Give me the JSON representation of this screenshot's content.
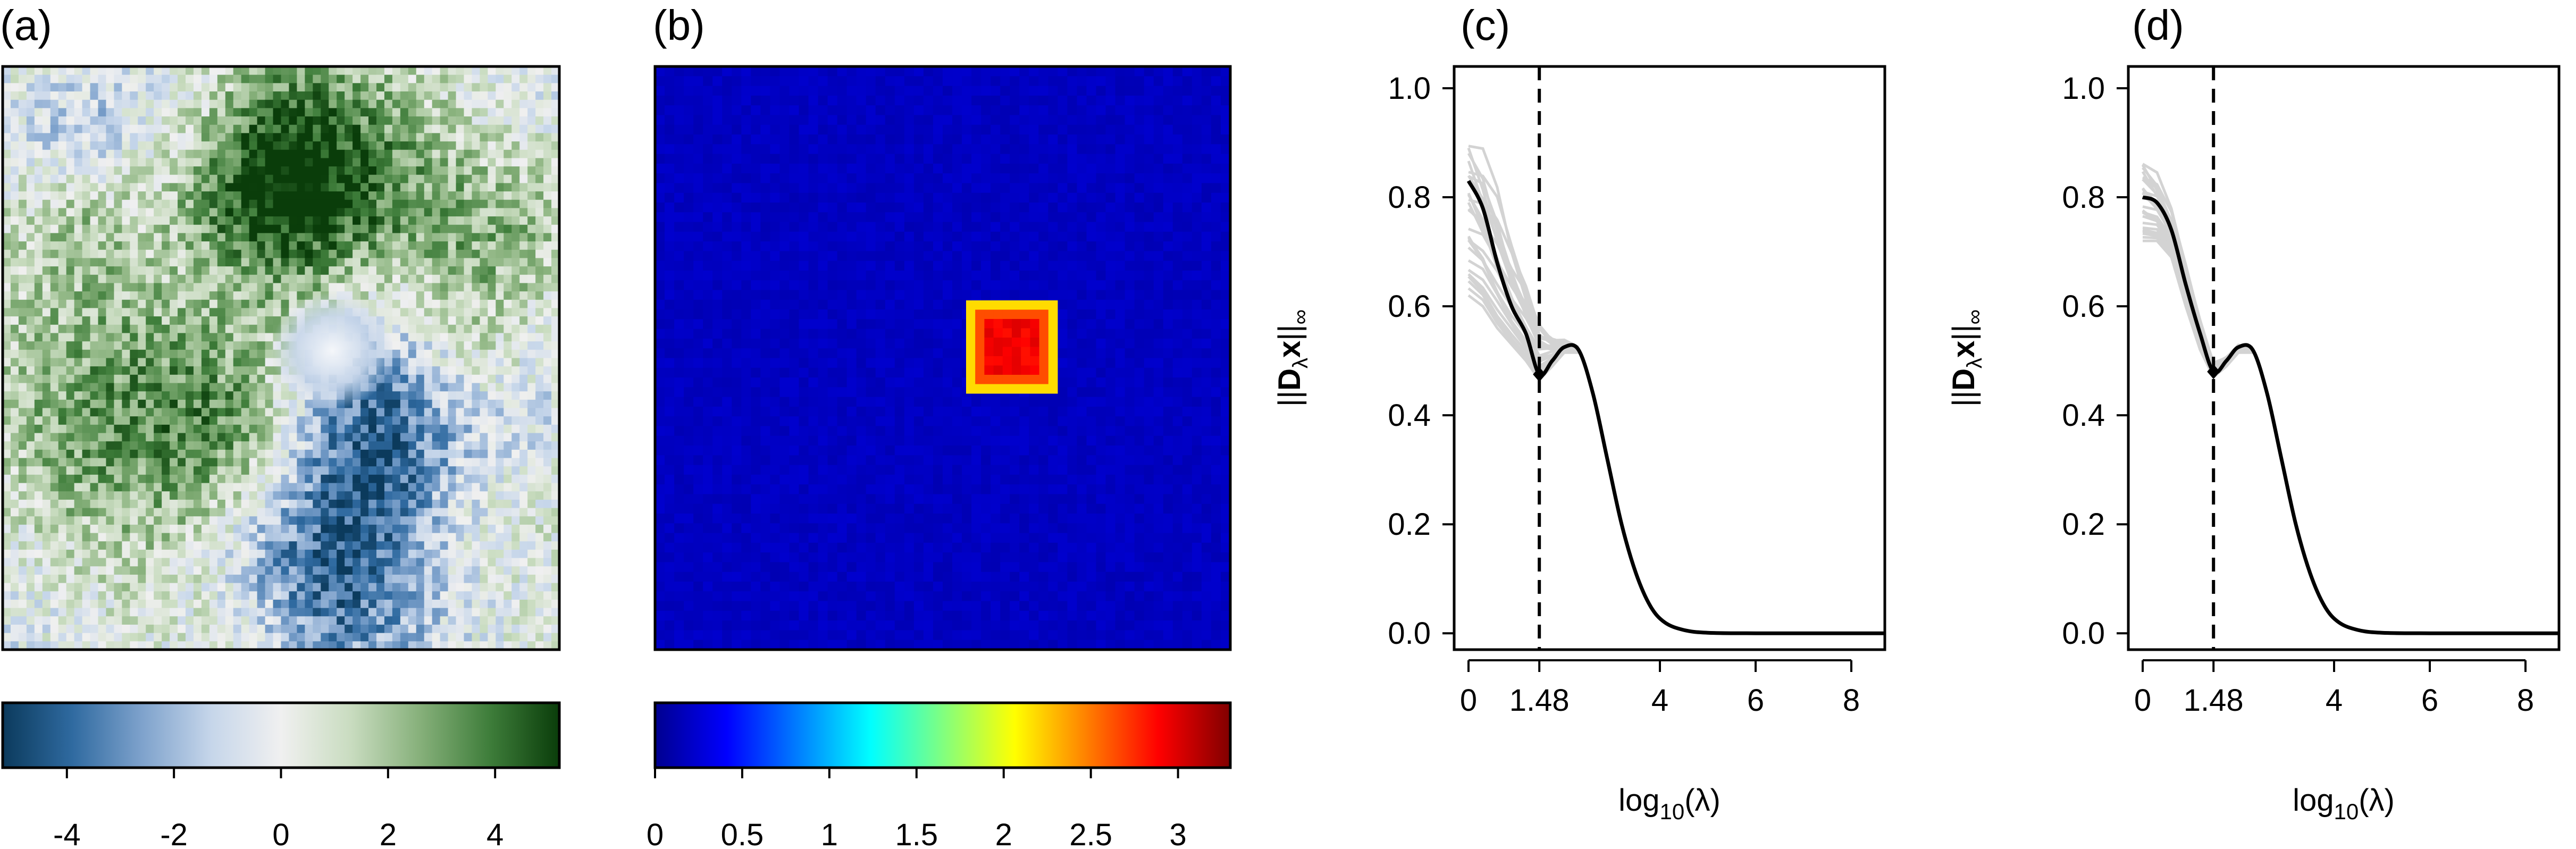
{
  "panels": [
    {
      "label": "(a)"
    },
    {
      "label": "(b)"
    },
    {
      "label": "(c)"
    },
    {
      "label": "(d)"
    }
  ],
  "colors": {
    "greenblue_scale": [
      "#0b3a5c",
      "#2f6aa0",
      "#7ea2cc",
      "#c6d6ea",
      "#f0f0f0",
      "#c9dcc0",
      "#86b07a",
      "#3e7d3a",
      "#0a3d0a"
    ],
    "jet_scale": [
      "#00008f",
      "#0000ff",
      "#0080ff",
      "#00ffff",
      "#80ff80",
      "#ffff00",
      "#ff8000",
      "#ff0000",
      "#800000"
    ],
    "curve": "#000000",
    "bootstrap_curves": "#d3d3d3",
    "vline": "#000000"
  },
  "colorbars": [
    {
      "id": "a",
      "ticks": [
        "-4",
        "-2",
        "0",
        "2",
        "4"
      ],
      "range": [
        -5.2,
        5.2
      ]
    },
    {
      "id": "b",
      "ticks": [
        "0",
        "0.5",
        "1",
        "1.5",
        "2",
        "2.5",
        "3"
      ],
      "range": [
        0,
        3.3
      ]
    }
  ],
  "chart_data": [
    {
      "panel": "c",
      "type": "line",
      "xlabel": "log10(λ)",
      "ylabel": "||Dλx||∞",
      "x_ticks": [
        "0",
        "1.48",
        "4",
        "6",
        "8"
      ],
      "x_tick_values": [
        0,
        1.48,
        4,
        6,
        8
      ],
      "y_ticks": [
        "0.0",
        "0.2",
        "0.4",
        "0.6",
        "0.8",
        "1.0"
      ],
      "xlim": [
        -0.3,
        8.7
      ],
      "ylim": [
        -0.03,
        1.04
      ],
      "vline_x": 1.48,
      "marker": {
        "x": 1.48,
        "y": 0.475
      },
      "series": [
        {
          "x": [
            0,
            0.3,
            0.6,
            0.9,
            1.2,
            1.48,
            1.75,
            2.0,
            2.3,
            2.6,
            2.9,
            3.2,
            3.5,
            3.8,
            4.1,
            4.5,
            5.0,
            6.0,
            8.7
          ],
          "y": [
            0.83,
            0.78,
            0.68,
            0.6,
            0.55,
            0.475,
            0.5,
            0.525,
            0.52,
            0.44,
            0.32,
            0.2,
            0.11,
            0.05,
            0.02,
            0.006,
            0.001,
            0.0,
            0.0
          ]
        }
      ],
      "bootstrap_band": {
        "x": [
          0,
          0.3,
          0.6,
          0.9,
          1.2,
          1.48,
          1.75,
          2.0,
          2.3
        ],
        "upper": [
          0.95,
          0.9,
          0.82,
          0.72,
          0.65,
          0.58,
          0.55,
          0.54,
          0.525
        ],
        "lower": [
          0.62,
          0.6,
          0.56,
          0.53,
          0.5,
          0.465,
          0.49,
          0.515,
          0.515
        ]
      }
    },
    {
      "panel": "d",
      "type": "line",
      "xlabel": "log10(λ)",
      "ylabel": "||Dλx||∞",
      "x_ticks": [
        "0",
        "1.48",
        "4",
        "6",
        "8"
      ],
      "x_tick_values": [
        0,
        1.48,
        4,
        6,
        8
      ],
      "y_ticks": [
        "0.0",
        "0.2",
        "0.4",
        "0.6",
        "0.8",
        "1.0"
      ],
      "xlim": [
        -0.3,
        8.7
      ],
      "ylim": [
        -0.03,
        1.04
      ],
      "vline_x": 1.48,
      "marker": {
        "x": 1.48,
        "y": 0.48
      },
      "series": [
        {
          "x": [
            0,
            0.3,
            0.6,
            0.9,
            1.2,
            1.48,
            1.75,
            2.0,
            2.3,
            2.6,
            2.9,
            3.2,
            3.5,
            3.8,
            4.1,
            4.5,
            5.0,
            6.0,
            8.7
          ],
          "y": [
            0.8,
            0.79,
            0.74,
            0.64,
            0.55,
            0.48,
            0.5,
            0.525,
            0.52,
            0.44,
            0.32,
            0.2,
            0.11,
            0.05,
            0.02,
            0.006,
            0.001,
            0.0,
            0.0
          ]
        }
      ],
      "bootstrap_band": {
        "x": [
          0,
          0.3,
          0.6,
          0.9,
          1.2,
          1.48,
          1.75,
          2.0,
          2.3
        ],
        "upper": [
          0.89,
          0.85,
          0.78,
          0.68,
          0.58,
          0.5,
          0.51,
          0.53,
          0.525
        ],
        "lower": [
          0.72,
          0.72,
          0.69,
          0.6,
          0.52,
          0.47,
          0.49,
          0.515,
          0.515
        ]
      }
    }
  ]
}
